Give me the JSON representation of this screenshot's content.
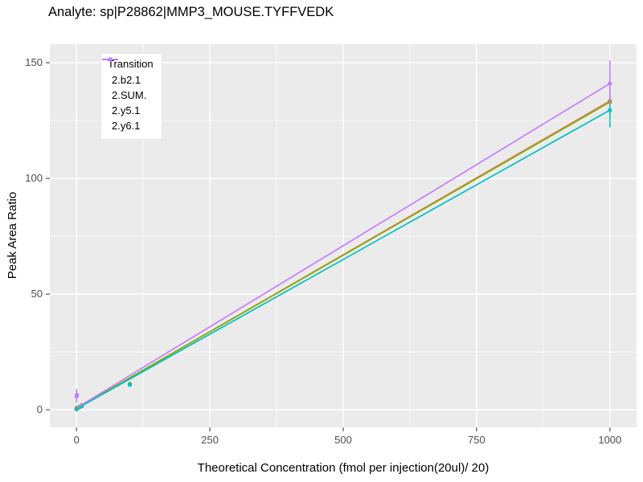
{
  "chart_data": {
    "type": "line",
    "title": "Analyte: sp|P28862|MMP3_MOUSE.TYFFVEDK",
    "xlabel": "Theoretical Concentration (fmol per injection(20ul)/ 20)",
    "ylabel": "Peak Area Ratio",
    "xlim": [
      -50,
      1050
    ],
    "ylim": [
      -7.6,
      158
    ],
    "xticks": [
      0,
      250,
      500,
      750,
      1000
    ],
    "yticks": [
      0,
      50,
      100,
      150
    ],
    "grid": true,
    "panel_bg": "#EBEBEB",
    "grid_color": "#FFFFFF",
    "tick_label_color": "#4D4D4D",
    "tick_mark_color": "#333333",
    "legend": {
      "title": "Transition",
      "position": "top-left-inside"
    },
    "series": [
      {
        "name": "2.b2.1",
        "color": "#F8766D",
        "line": {
          "x": [
            0,
            1000
          ],
          "y": [
            0.5,
            133.5
          ]
        },
        "points": [
          [
            0,
            0.3
          ],
          [
            1,
            0.6
          ],
          [
            5,
            1.0
          ],
          [
            10,
            1.7
          ],
          [
            100,
            11.0
          ],
          [
            1000,
            133.5
          ]
        ],
        "error_bars": [
          {
            "x": 1000,
            "ymin": 128,
            "ymax": 139
          }
        ]
      },
      {
        "name": "2.SUM.",
        "color": "#7CAE00",
        "line": {
          "x": [
            0,
            1000
          ],
          "y": [
            0.6,
            133
          ]
        },
        "points": [
          [
            0,
            0.5
          ],
          [
            1,
            0.9
          ],
          [
            5,
            1.3
          ],
          [
            10,
            2.0
          ],
          [
            100,
            11.2
          ],
          [
            1000,
            133
          ]
        ],
        "error_bars": [
          {
            "x": 0,
            "ymin": 0,
            "ymax": 1.5
          },
          {
            "x": 1000,
            "ymin": 127,
            "ymax": 139
          }
        ]
      },
      {
        "name": "2.y5.1",
        "color": "#00BFC4",
        "line": {
          "x": [
            0,
            1000
          ],
          "y": [
            0.4,
            129.5
          ]
        },
        "points": [
          [
            0,
            0.3
          ],
          [
            1,
            0.5
          ],
          [
            10,
            1.5
          ],
          [
            100,
            10.8
          ],
          [
            1000,
            129.5
          ]
        ],
        "error_bars": [
          {
            "x": 1000,
            "ymin": 122,
            "ymax": 136
          }
        ]
      },
      {
        "name": "2.y6.1",
        "color": "#C77CFF",
        "line": {
          "x": [
            0,
            1000
          ],
          "y": [
            0.8,
            141
          ]
        },
        "points": [
          [
            0,
            5.8
          ],
          [
            1,
            6.4
          ],
          [
            1000,
            141
          ]
        ],
        "error_bars": [
          {
            "x": 0,
            "ymin": 3,
            "ymax": 9
          },
          {
            "x": 1000,
            "ymin": 131.5,
            "ymax": 151
          }
        ]
      }
    ]
  }
}
